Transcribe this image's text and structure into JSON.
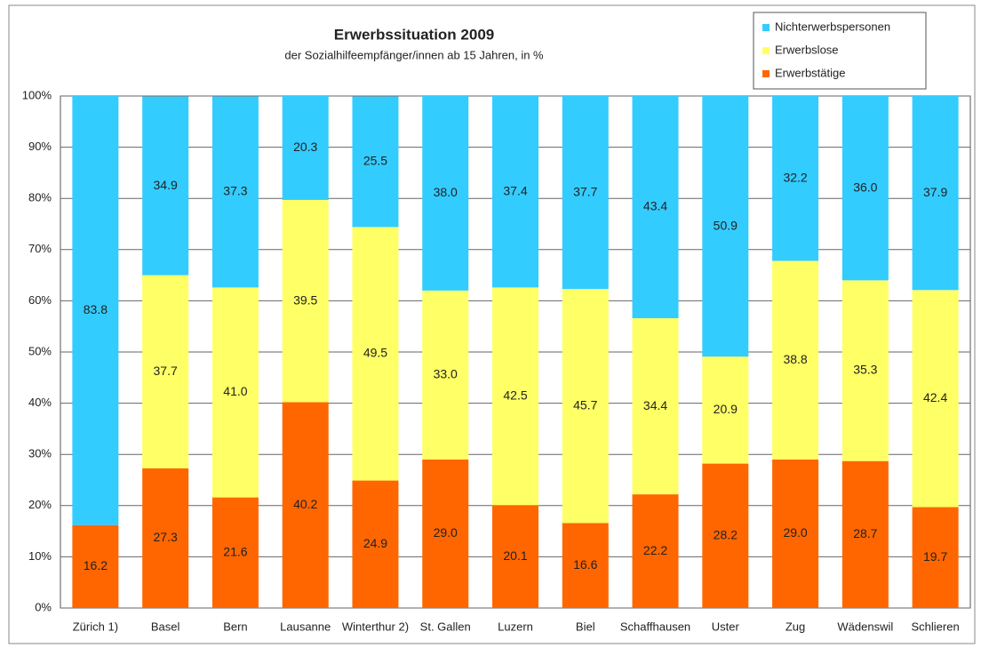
{
  "chart_data": {
    "type": "stacked_bar",
    "title": "Erwerbssituation 2009",
    "subtitle": "der Sozialhilfeempfänger/innen ab 15 Jahren, in %",
    "categories": [
      "Zürich 1)",
      "Basel",
      "Bern",
      "Lausanne",
      "Winterthur 2)",
      "St. Gallen",
      "Luzern",
      "Biel",
      "Schaffhausen",
      "Uster",
      "Zug",
      "Wädenswil",
      "Schlieren"
    ],
    "series": [
      {
        "name": "Erwerbstätige",
        "color": "#ff6600",
        "values": [
          16.2,
          27.3,
          21.6,
          40.2,
          24.9,
          29.0,
          20.1,
          16.6,
          22.2,
          28.2,
          29.0,
          28.7,
          19.7
        ],
        "value_labels": [
          "16.2",
          "27.3",
          "21.6",
          "40.2",
          "24.9",
          "29.0",
          "20.1",
          "16.6",
          "22.2",
          "28.2",
          "29.0",
          "28.7",
          "19.7"
        ]
      },
      {
        "name": "Erwerbslose",
        "color": "#ffff66",
        "values": [
          null,
          37.7,
          41.0,
          39.5,
          49.5,
          33.0,
          42.5,
          45.7,
          34.4,
          20.9,
          38.8,
          35.3,
          42.4
        ],
        "value_labels": [
          null,
          "37.7",
          "41.0",
          "39.5",
          "49.5",
          "33.0",
          "42.5",
          "45.7",
          "34.4",
          "20.9",
          "38.8",
          "35.3",
          "42.4"
        ]
      },
      {
        "name": "Nichterwerbspersonen",
        "color": "#33ccff",
        "values": [
          83.8,
          34.9,
          37.3,
          20.3,
          25.5,
          38.0,
          37.4,
          37.7,
          43.4,
          50.9,
          32.2,
          36.0,
          37.9
        ],
        "value_labels": [
          "83.8",
          "34.9",
          "37.3",
          "20.3",
          "25.5",
          "38.0",
          "37.4",
          "37.7",
          "43.4",
          "50.9",
          "32.2",
          "36.0",
          "37.9"
        ]
      }
    ],
    "ylim": [
      0,
      100
    ],
    "yticks": [
      {
        "value": 0,
        "label": "0%"
      },
      {
        "value": 10,
        "label": "10%"
      },
      {
        "value": 20,
        "label": "20%"
      },
      {
        "value": 30,
        "label": "30%"
      },
      {
        "value": 40,
        "label": "40%"
      },
      {
        "value": 50,
        "label": "50%"
      },
      {
        "value": 60,
        "label": "60%"
      },
      {
        "value": 70,
        "label": "70%"
      },
      {
        "value": 80,
        "label": "80%"
      },
      {
        "value": 90,
        "label": "90%"
      },
      {
        "value": 100,
        "label": "100%"
      }
    ],
    "grid": true,
    "legend": "top-right"
  }
}
